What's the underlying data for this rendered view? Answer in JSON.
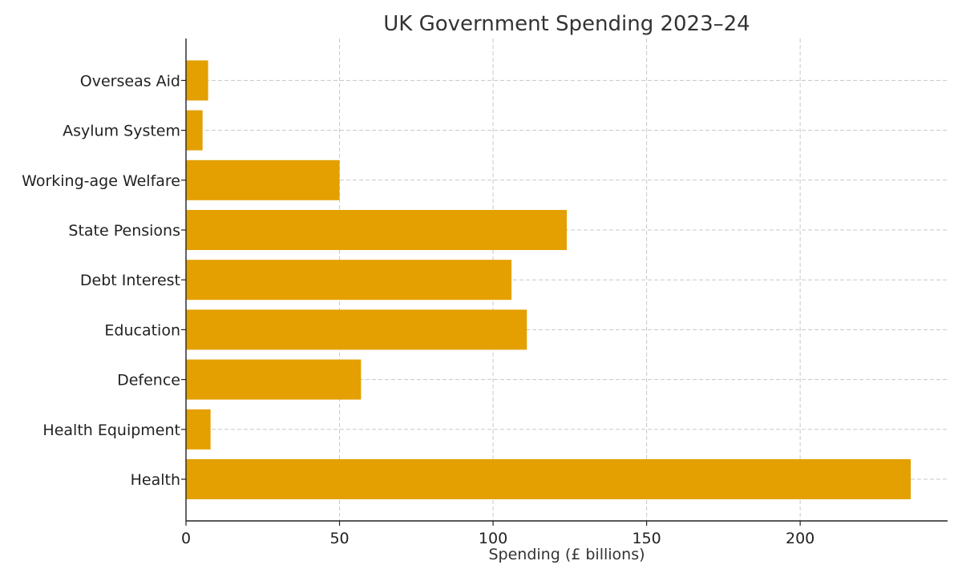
{
  "chart_data": {
    "type": "bar",
    "orientation": "horizontal",
    "title": "UK Government Spending 2023–24",
    "xlabel": "Spending (£ billions)",
    "ylabel": "",
    "categories": [
      "Health",
      "Health Equipment",
      "Defence",
      "Education",
      "Debt Interest",
      "State Pensions",
      "Working-age Welfare",
      "Asylum System",
      "Overseas Aid"
    ],
    "values": [
      236,
      8,
      57,
      111,
      106,
      124,
      50,
      5.4,
      7.2
    ],
    "xlim": [
      0,
      248
    ],
    "xticks": [
      0,
      50,
      100,
      150,
      200
    ],
    "grid": true,
    "bar_color": "#E3A000"
  }
}
